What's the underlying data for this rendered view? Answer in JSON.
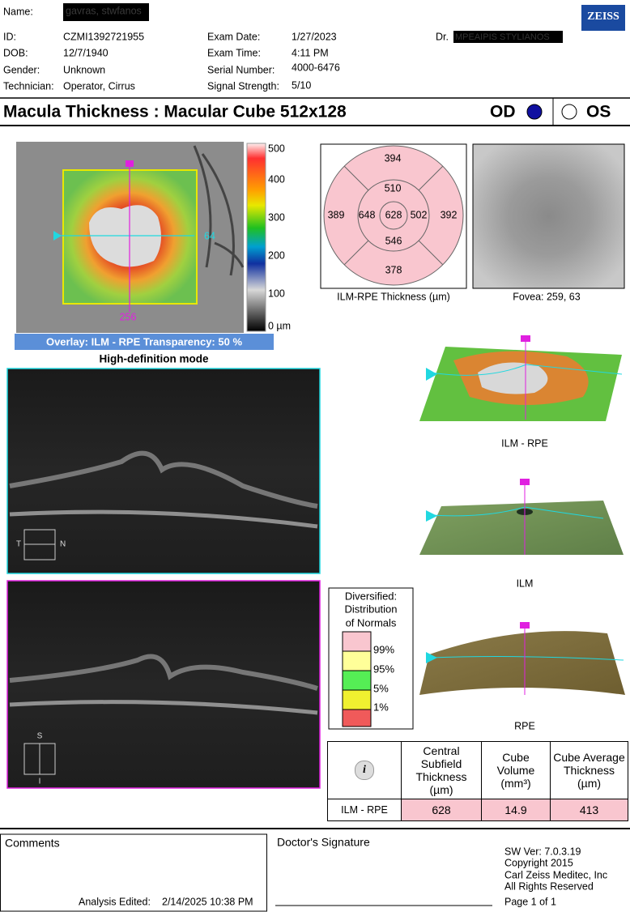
{
  "header": {
    "name_label": "Name:",
    "name": "gavras, stwfanos",
    "logo": "ZEISS",
    "fields": [
      {
        "label": "ID:",
        "value": "CZMI1392721955"
      },
      {
        "label": "DOB:",
        "value": "12/7/1940"
      },
      {
        "label": "Gender:",
        "value": "Unknown"
      },
      {
        "label": "Technician:",
        "value": "Operator, Cirrus"
      }
    ],
    "exam": [
      {
        "label": "Exam Date:",
        "value": "1/27/2023"
      },
      {
        "label": "Exam Time:",
        "value": "4:11 PM"
      },
      {
        "label": "Serial Number:",
        "value": "4000-6476"
      },
      {
        "label": "Signal Strength:",
        "value": "5/10"
      }
    ],
    "doctor_label": "Dr.",
    "doctor": "MPEAIPIS STYLIANOS"
  },
  "title": "Macula Thickness : Macular Cube 512x128",
  "eye_od": "OD",
  "eye_os": "OS",
  "thickness_map": {
    "colorbar_labels": [
      "500",
      "400",
      "300",
      "200",
      "100",
      "0 µm"
    ],
    "slice_h": "64",
    "slice_v": "256",
    "overlay_caption": "Overlay: ILM - RPE  Transparency: 50 %",
    "mode": "High-definition mode"
  },
  "bscans": [
    {
      "left": "T",
      "right": "N"
    },
    {
      "top": "S",
      "bottom": "I"
    }
  ],
  "etdrs": {
    "outer_superior": "394",
    "inner_superior": "510",
    "outer_temporal": "389",
    "inner_temporal": "648",
    "center": "628",
    "inner_nasal": "502",
    "outer_nasal": "392",
    "inner_inferior": "546",
    "outer_inferior": "378",
    "caption": "ILM-RPE Thickness (µm)"
  },
  "fundus_caption": "Fovea: 259, 63",
  "surfaces": [
    "ILM - RPE",
    "ILM",
    "RPE"
  ],
  "normals": {
    "title_lines": [
      "Diversified:",
      "Distribution",
      "of Normals"
    ],
    "levels": [
      "99%",
      "95%",
      "5%",
      "1%"
    ]
  },
  "summary_table": {
    "icon": "i",
    "headers": [
      "Central Subfield Thickness (µm)",
      "Cube Volume (mm³)",
      "Cube Average Thickness (µm)"
    ],
    "rows": [
      [
        "ILM - RPE",
        "628",
        "14.9",
        "413"
      ]
    ]
  },
  "footer": {
    "comments_label": "Comments",
    "analysis_edited_label": "Analysis Edited:",
    "analysis_edited": "2/14/2025 10:38 PM",
    "signature_label": "Doctor's Signature",
    "software": [
      "SW Ver: 7.0.3.19",
      "Copyright 2015",
      "Carl Zeiss Meditec, Inc",
      "All Rights Reserved"
    ],
    "page": "Page 1 of 1"
  }
}
